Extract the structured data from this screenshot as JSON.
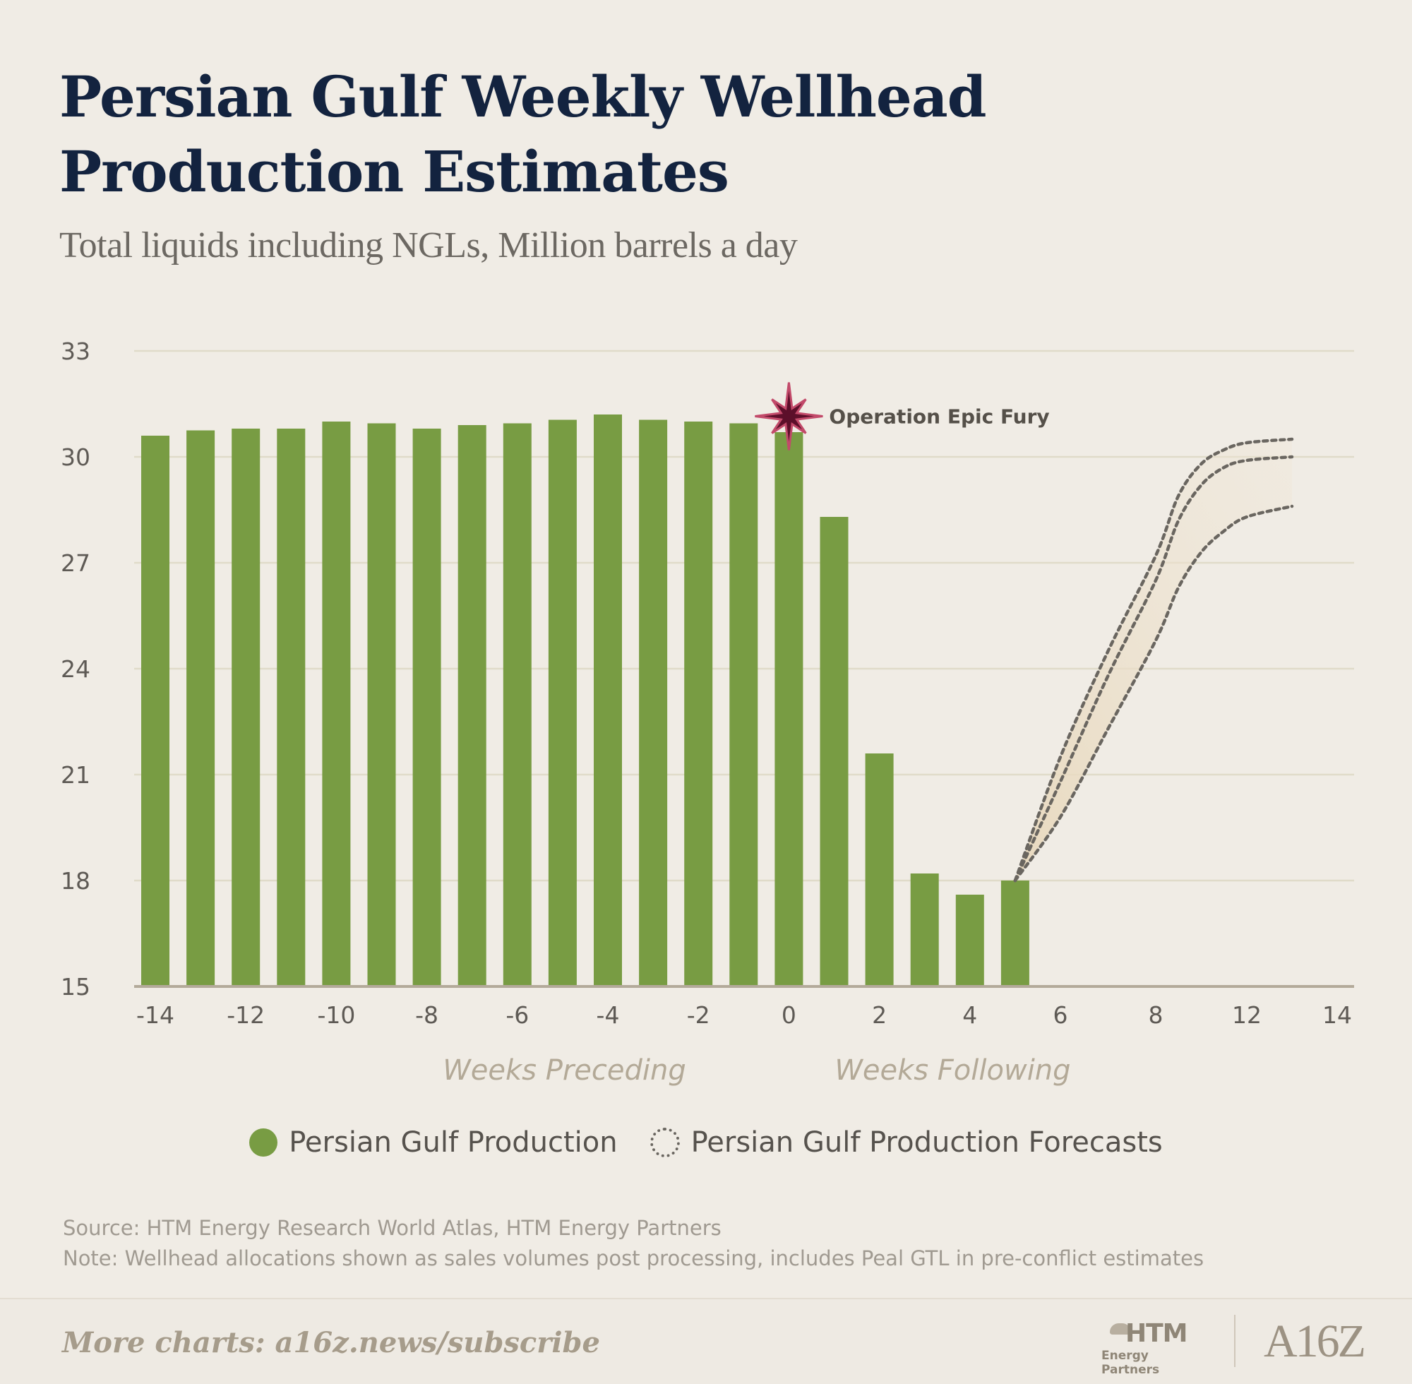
{
  "title": "Persian Gulf Weekly Wellhead Production Estimates",
  "subtitle": "Total liquids including NGLs, Million barrels a day",
  "annotation": "Operation Epic Fury",
  "legend": {
    "production": "Persian Gulf Production",
    "forecasts": "Persian Gulf Production Forecasts"
  },
  "source": "Source: HTM Energy Research World Atlas, HTM Energy Partners",
  "note": "Note: Wellhead allocations shown as sales volumes post processing, includes Peal GTL in pre-conflict estimates",
  "footer": "More charts: a16z.news/subscribe",
  "logos": {
    "htm_name": "HTM",
    "htm_sub": "Energy Partners",
    "a16z": "A16Z"
  },
  "colors": {
    "bar": "#789c43",
    "title": "#13233f",
    "marker": "#5c0f2a",
    "marker_outline": "#c24a6a",
    "forecast_line": "#6a6660",
    "forecast_band": "#e8d8bc",
    "grid": "#e0dbc9",
    "axis": "#b3aa9a"
  },
  "chart_data": {
    "type": "bar",
    "ylim": [
      15,
      33
    ],
    "yticks": [
      15,
      18,
      21,
      24,
      27,
      30,
      33
    ],
    "x_tick_labels": [
      "-14",
      "-12",
      "-10",
      "-8",
      "-6",
      "-4",
      "-2",
      "0",
      "2",
      "4",
      "6",
      "8",
      "12",
      "14"
    ],
    "x_section_labels": [
      "Weeks Preceding",
      "Weeks Following"
    ],
    "grid": true,
    "legend_position": "bottom-center",
    "annotation_week": 0,
    "series": [
      {
        "name": "Persian Gulf Production",
        "x": [
          -14,
          -13,
          -12,
          -11,
          -10,
          -9,
          -8,
          -7,
          -6,
          -5,
          -4,
          -3,
          -2,
          -1,
          0,
          1,
          2,
          3,
          4,
          5
        ],
        "values": [
          30.6,
          30.75,
          30.8,
          30.8,
          31.0,
          30.95,
          30.8,
          30.9,
          30.95,
          31.05,
          31.2,
          31.05,
          31.0,
          30.95,
          30.7,
          28.3,
          21.6,
          18.2,
          17.6,
          18.0
        ]
      },
      {
        "name": "Persian Gulf Production Forecasts",
        "style": "dotted",
        "forecasts": [
          {
            "x": [
              5,
              6,
              7,
              8,
              9,
              10,
              11,
              12,
              13
            ],
            "values": [
              18.0,
              21.5,
              24.5,
              27.2,
              28.9,
              29.8,
              30.2,
              30.4,
              30.5
            ]
          },
          {
            "x": [
              5,
              6,
              7,
              8,
              9,
              10,
              11,
              12,
              13
            ],
            "values": [
              18.0,
              20.8,
              23.8,
              26.5,
              28.2,
              29.2,
              29.7,
              29.9,
              30.0
            ]
          },
          {
            "x": [
              5,
              6,
              7,
              8,
              9,
              10,
              11,
              12,
              13
            ],
            "values": [
              18.0,
              19.8,
              22.3,
              24.8,
              26.3,
              27.3,
              27.9,
              28.3,
              28.6
            ]
          }
        ]
      }
    ]
  }
}
